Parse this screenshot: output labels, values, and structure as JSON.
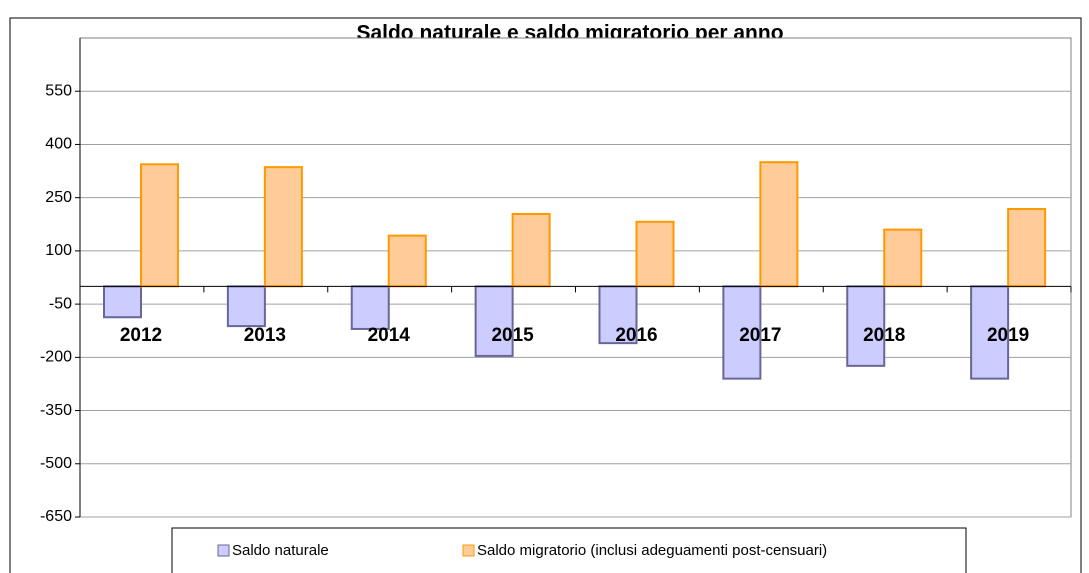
{
  "chart_data": {
    "type": "bar",
    "title": "Saldo naturale e saldo migratorio per anno",
    "categories": [
      "2012",
      "2013",
      "2014",
      "2015",
      "2016",
      "2017",
      "2018",
      "2019"
    ],
    "series": [
      {
        "name": "Saldo naturale",
        "color": "#ccccff",
        "values": [
          -87,
          -112,
          -120,
          -196,
          -160,
          -260,
          -224,
          -260
        ]
      },
      {
        "name": "Saldo migratorio (inclusi adeguamenti post-censuari)",
        "color": "#ffcc99",
        "values": [
          344,
          336,
          143,
          204,
          182,
          350,
          160,
          218
        ]
      }
    ],
    "ylim": [
      -650,
      700
    ],
    "yticks": [
      -650,
      -500,
      -350,
      -200,
      -50,
      100,
      250,
      400,
      550
    ],
    "grid": true
  }
}
